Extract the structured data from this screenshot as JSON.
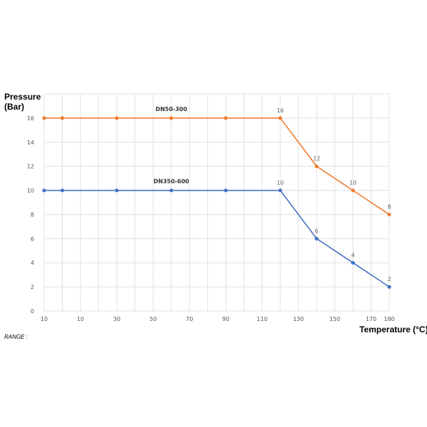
{
  "chart_data": {
    "type": "line",
    "ylabel": "Pressure\n(Bar)",
    "xlabel": "Temperature (°C)",
    "x_tick_labels": [
      "10",
      "10",
      "30",
      "50",
      "70",
      "90",
      "110",
      "130",
      "150",
      "170",
      "180"
    ],
    "x": [
      -10,
      0,
      30,
      60,
      90,
      120,
      140,
      160,
      180
    ],
    "xlim": [
      -10,
      180
    ],
    "y_ticks": [
      0,
      2,
      4,
      6,
      8,
      10,
      12,
      14,
      16
    ],
    "ylim": [
      0,
      18
    ],
    "grid": true,
    "series": [
      {
        "name": "DN50-300",
        "color": "#ED7D31",
        "values": [
          16,
          16,
          16,
          16,
          16,
          16,
          12,
          10,
          8
        ],
        "point_labels": [
          "",
          "",
          "",
          "",
          "",
          "16",
          "12",
          "10",
          "8"
        ]
      },
      {
        "name": "DN350-600",
        "color": "#4472C4",
        "values": [
          10,
          10,
          10,
          10,
          10,
          10,
          6,
          4,
          2
        ],
        "point_labels": [
          "",
          "",
          "",
          "",
          "",
          "10",
          "6",
          "4",
          "2"
        ]
      }
    ],
    "footer_note": "RANGE :"
  }
}
